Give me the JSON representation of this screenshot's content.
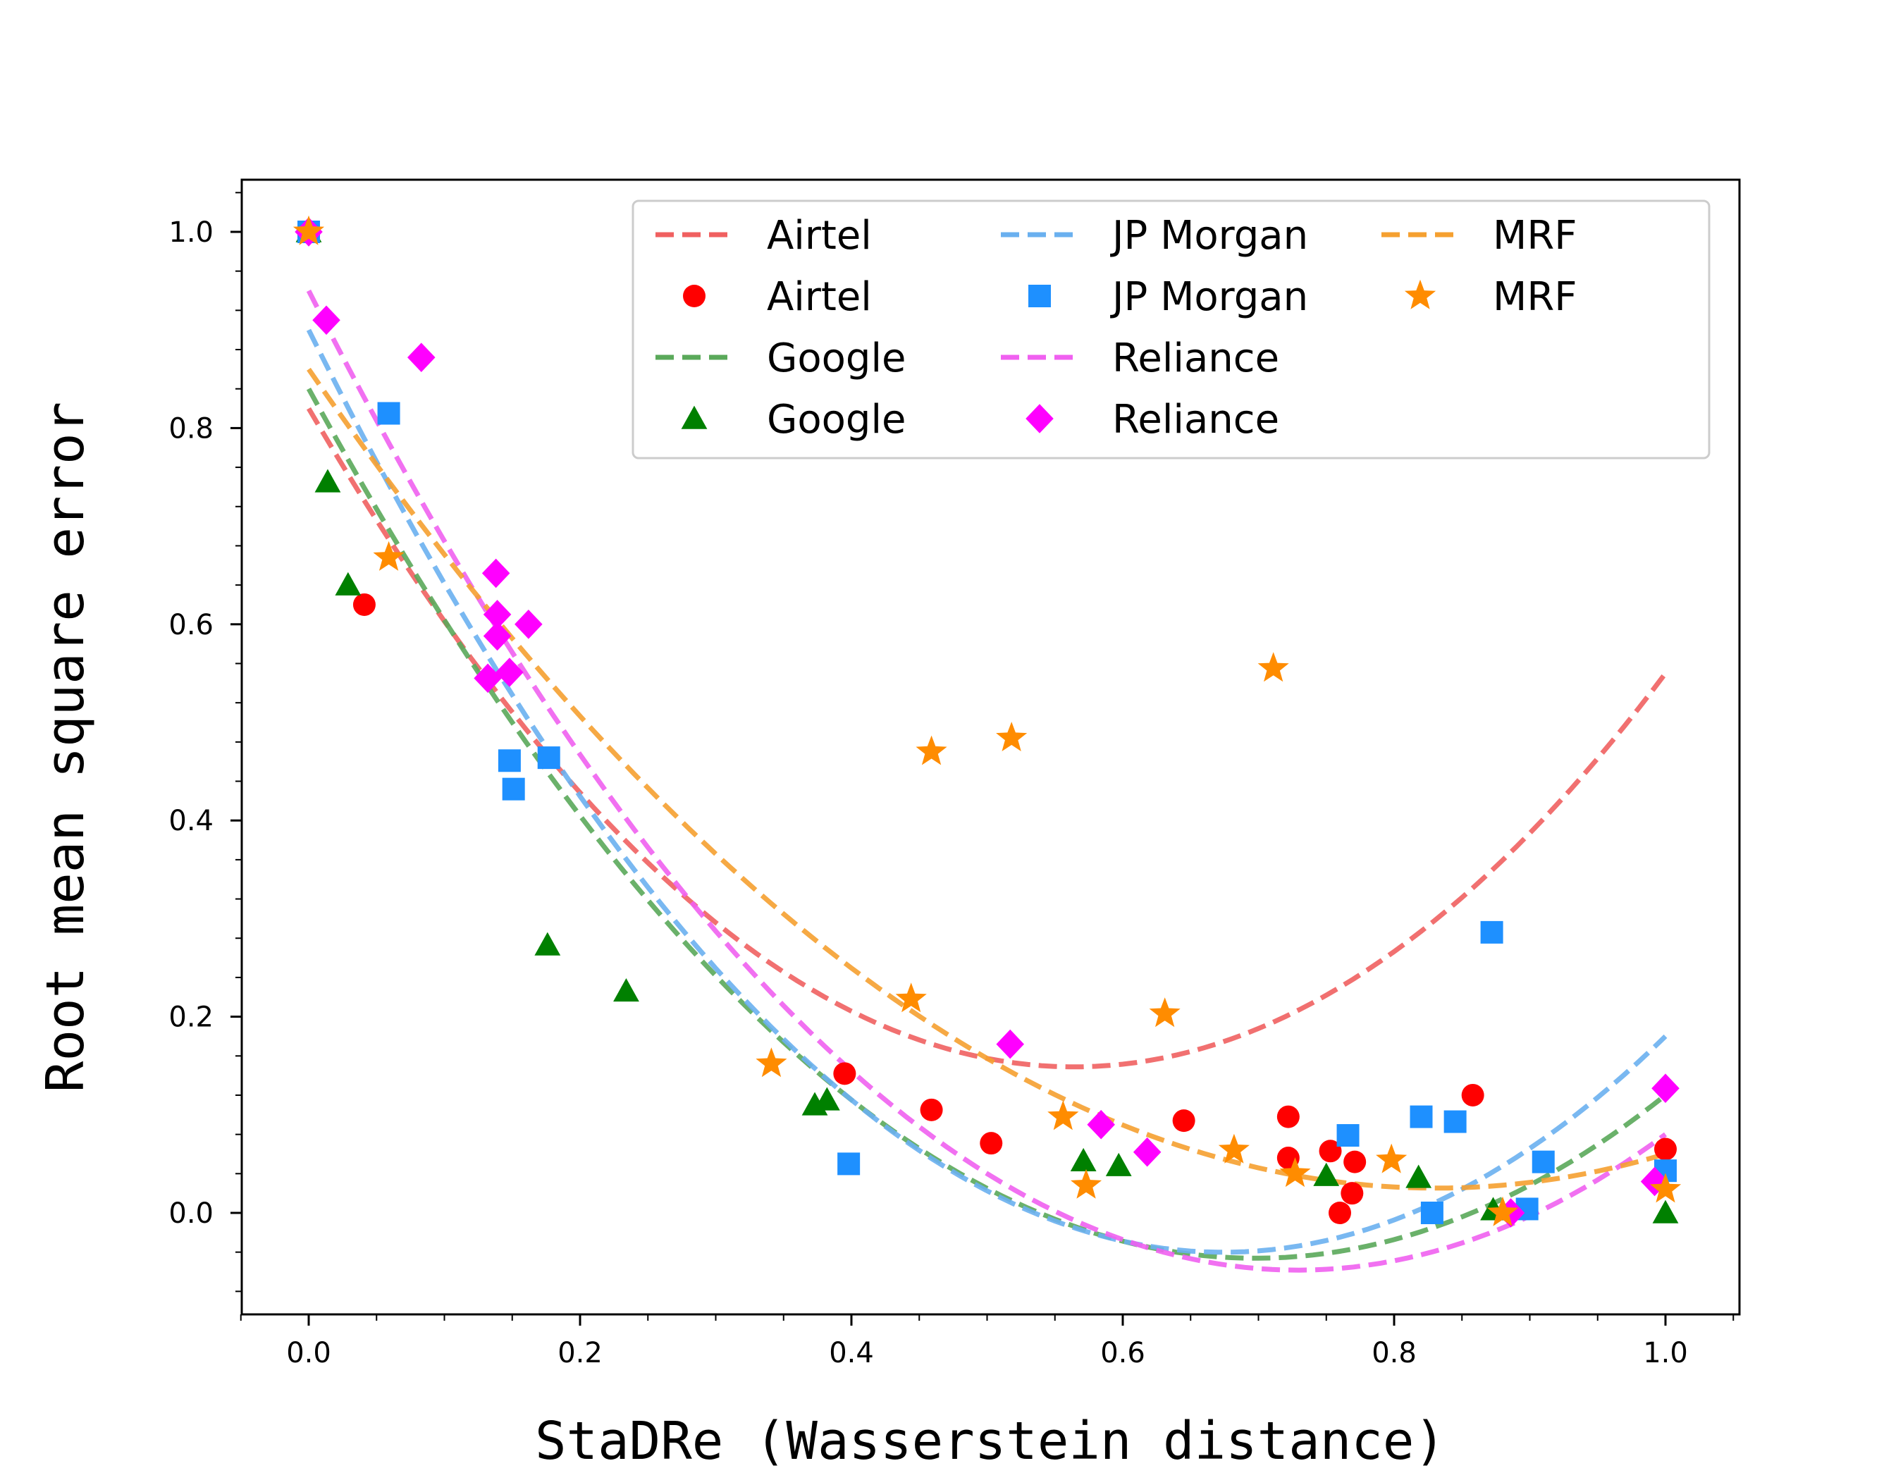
{
  "chart_data": {
    "type": "scatter",
    "title": "",
    "xlabel": "StaDRe (Wasserstein distance)",
    "ylabel": "Root mean square error",
    "xlim": [
      -0.05,
      1.05
    ],
    "ylim": [
      -0.1,
      1.05
    ],
    "xticks": [
      "0.0",
      "0.2",
      "0.4",
      "0.6",
      "0.8",
      "1.0"
    ],
    "yticks": [
      "0.0",
      "0.2",
      "0.4",
      "0.6",
      "0.8",
      "1.0"
    ],
    "grid": false,
    "legend_position": "upper-right",
    "legend": [
      {
        "label": "Airtel",
        "kind": "line",
        "color": "#f06060"
      },
      {
        "label": "Airtel",
        "kind": "marker",
        "marker": "circle",
        "color": "#ff0000"
      },
      {
        "label": "Google",
        "kind": "line",
        "color": "#5aa95a"
      },
      {
        "label": "Google",
        "kind": "marker",
        "marker": "triangle",
        "color": "#008000"
      },
      {
        "label": "JP Morgan",
        "kind": "line",
        "color": "#6ab0ef"
      },
      {
        "label": "JP Morgan",
        "kind": "marker",
        "marker": "square",
        "color": "#1e90ff"
      },
      {
        "label": "Reliance",
        "kind": "line",
        "color": "#f060f0"
      },
      {
        "label": "Reliance",
        "kind": "marker",
        "marker": "diamond",
        "color": "#ff00ff"
      },
      {
        "label": "MRF",
        "kind": "line",
        "color": "#f5a030"
      },
      {
        "label": "MRF",
        "kind": "marker",
        "marker": "star",
        "color": "#ff8c00"
      }
    ],
    "series": [
      {
        "name": "Airtel",
        "marker": "circle",
        "color": "#ff0000",
        "fit_color": "#f06060",
        "fit_coefficients": [
          0.82,
          -2.38,
          2.11
        ],
        "points": [
          [
            0.0,
            1.0
          ],
          [
            0.041,
            0.62
          ],
          [
            0.395,
            0.142
          ],
          [
            0.459,
            0.105
          ],
          [
            0.503,
            0.071
          ],
          [
            0.645,
            0.094
          ],
          [
            0.722,
            0.098
          ],
          [
            0.722,
            0.056
          ],
          [
            0.753,
            0.063
          ],
          [
            0.76,
            0.0
          ],
          [
            0.769,
            0.02
          ],
          [
            0.771,
            0.052
          ],
          [
            0.858,
            0.12
          ],
          [
            1.0,
            0.065
          ]
        ]
      },
      {
        "name": "Google",
        "marker": "triangle",
        "color": "#008000",
        "fit_color": "#5aa95a",
        "fit_coefficients": [
          0.84,
          -2.54,
          1.82
        ],
        "points": [
          [
            0.0,
            1.0
          ],
          [
            0.014,
            0.745
          ],
          [
            0.029,
            0.64
          ],
          [
            0.176,
            0.273
          ],
          [
            0.234,
            0.226
          ],
          [
            0.373,
            0.11
          ],
          [
            0.382,
            0.115
          ],
          [
            0.571,
            0.053
          ],
          [
            0.597,
            0.048
          ],
          [
            0.75,
            0.038
          ],
          [
            0.818,
            0.036
          ],
          [
            0.873,
            0.003
          ],
          [
            1.0,
            0.0
          ]
        ]
      },
      {
        "name": "JP Morgan",
        "marker": "square",
        "color": "#1e90ff",
        "fit_color": "#6ab0ef",
        "fit_coefficients": [
          0.9,
          -2.79,
          2.07
        ],
        "points": [
          [
            0.0,
            1.0
          ],
          [
            0.059,
            0.815
          ],
          [
            0.148,
            0.461
          ],
          [
            0.151,
            0.432
          ],
          [
            0.177,
            0.464
          ],
          [
            0.398,
            0.05
          ],
          [
            0.766,
            0.079
          ],
          [
            0.82,
            0.098
          ],
          [
            0.828,
            0.0
          ],
          [
            0.845,
            0.093
          ],
          [
            0.872,
            0.286
          ],
          [
            0.898,
            0.004
          ],
          [
            0.91,
            0.052
          ],
          [
            1.0,
            0.043
          ]
        ]
      },
      {
        "name": "Reliance",
        "marker": "diamond",
        "color": "#ff00ff",
        "fit_color": "#f060f0",
        "fit_coefficients": [
          0.94,
          -2.74,
          1.88
        ],
        "points": [
          [
            0.0,
            1.0
          ],
          [
            0.013,
            0.91
          ],
          [
            0.083,
            0.872
          ],
          [
            0.132,
            0.545
          ],
          [
            0.138,
            0.652
          ],
          [
            0.139,
            0.61
          ],
          [
            0.139,
            0.588
          ],
          [
            0.148,
            0.551
          ],
          [
            0.162,
            0.6
          ],
          [
            0.517,
            0.172
          ],
          [
            0.584,
            0.09
          ],
          [
            0.618,
            0.062
          ],
          [
            0.886,
            0.0
          ],
          [
            0.992,
            0.032
          ],
          [
            1.0,
            0.127
          ]
        ]
      },
      {
        "name": "MRF",
        "marker": "star",
        "color": "#ff8c00",
        "fit_color": "#f5a030",
        "fit_coefficients": [
          0.86,
          -2.01,
          1.21
        ],
        "points": [
          [
            0.0,
            1.0
          ],
          [
            0.059,
            0.668
          ],
          [
            0.341,
            0.152
          ],
          [
            0.444,
            0.218
          ],
          [
            0.459,
            0.47
          ],
          [
            0.518,
            0.484
          ],
          [
            0.556,
            0.098
          ],
          [
            0.573,
            0.028
          ],
          [
            0.631,
            0.203
          ],
          [
            0.682,
            0.064
          ],
          [
            0.711,
            0.555
          ],
          [
            0.727,
            0.04
          ],
          [
            0.798,
            0.054
          ],
          [
            0.88,
            0.0
          ],
          [
            1.0,
            0.024
          ]
        ]
      }
    ]
  }
}
